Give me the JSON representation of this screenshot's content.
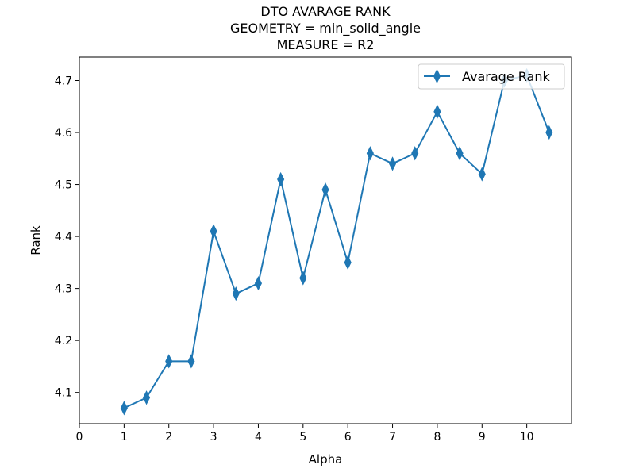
{
  "chart_data": {
    "type": "line",
    "title_lines": [
      "DTO AVARAGE RANK",
      "GEOMETRY = min_solid_angle",
      "MEASURE = R2"
    ],
    "xlabel": "Alpha",
    "ylabel": "Rank",
    "xlim": [
      0,
      11
    ],
    "ylim": [
      4.04,
      4.745
    ],
    "xticks": [
      0,
      1,
      2,
      3,
      4,
      5,
      6,
      7,
      8,
      9,
      10
    ],
    "yticks": [
      4.1,
      4.2,
      4.3,
      4.4,
      4.5,
      4.6,
      4.7
    ],
    "grid": false,
    "legend_position": "top-right",
    "series": [
      {
        "name": "Avarage Rank",
        "color": "#1f77b4",
        "marker": "thin-diamond",
        "x": [
          1,
          1.5,
          2,
          2.5,
          3,
          3.5,
          4,
          4.5,
          5,
          5.5,
          6,
          6.5,
          7,
          7.5,
          8,
          8.5,
          9,
          9.5,
          10,
          10.5
        ],
        "y": [
          4.07,
          4.09,
          4.16,
          4.16,
          4.41,
          4.29,
          4.31,
          4.51,
          4.32,
          4.49,
          4.35,
          4.56,
          4.54,
          4.56,
          4.64,
          4.56,
          4.52,
          4.7,
          4.71,
          4.6
        ]
      }
    ]
  }
}
